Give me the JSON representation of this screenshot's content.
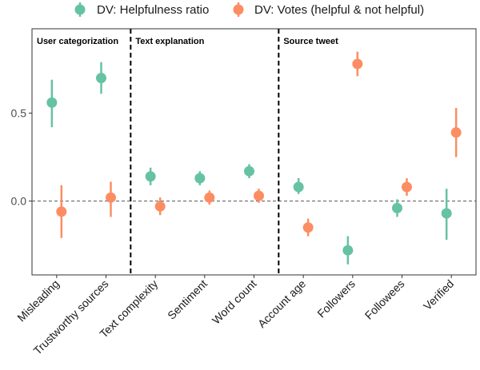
{
  "chart_data": {
    "type": "scatter",
    "legend_position": "top",
    "y_gridlines": false,
    "reference_line": 0,
    "ylim": [
      -0.42,
      0.98
    ],
    "yticks": [
      0.0,
      0.5
    ],
    "ytick_labels": [
      "0.0",
      "0.5"
    ],
    "categories": [
      "Misleading",
      "Trustworthy sources",
      "Text complexity",
      "Sentiment",
      "Word count",
      "Account age",
      "Followers",
      "Followees",
      "Verified"
    ],
    "groups": [
      {
        "label": "User categorization",
        "from": 0,
        "to": 1
      },
      {
        "label": "Text explanation",
        "from": 2,
        "to": 4
      },
      {
        "label": "Source tweet",
        "from": 5,
        "to": 8
      }
    ],
    "series": [
      {
        "name": "DV: Helpfulness ratio",
        "color": "#66c2a5",
        "values": [
          0.56,
          0.7,
          0.14,
          0.13,
          0.17,
          0.08,
          -0.28,
          -0.04,
          -0.07
        ],
        "ci_low": [
          0.42,
          0.61,
          0.09,
          0.09,
          0.13,
          0.04,
          -0.36,
          -0.09,
          -0.22
        ],
        "ci_high": [
          0.69,
          0.79,
          0.19,
          0.17,
          0.21,
          0.13,
          -0.2,
          0.01,
          0.07
        ]
      },
      {
        "name": "DV: Votes (helpful & not helpful)",
        "color": "#fc8d62",
        "values": [
          -0.06,
          0.02,
          -0.03,
          0.02,
          0.03,
          -0.15,
          0.78,
          0.08,
          0.39
        ],
        "ci_low": [
          -0.21,
          -0.09,
          -0.08,
          -0.02,
          -0.01,
          -0.2,
          0.71,
          0.03,
          0.25
        ],
        "ci_high": [
          0.09,
          0.11,
          0.02,
          0.06,
          0.07,
          -0.1,
          0.85,
          0.13,
          0.53
        ]
      }
    ]
  }
}
